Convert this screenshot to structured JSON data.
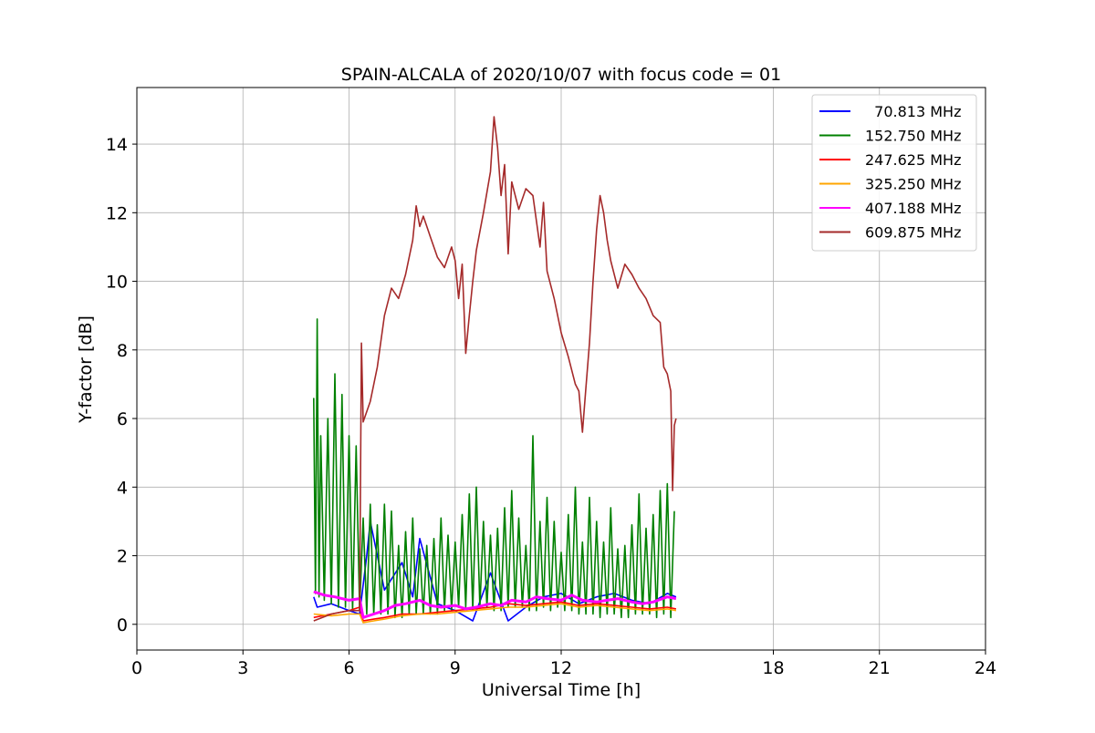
{
  "chart_data": {
    "type": "line",
    "title": "SPAIN-ALCALA of 2020/10/07 with focus code = 01",
    "xlabel": "Universal Time [h]",
    "ylabel": "Y-factor [dB]",
    "xlim": [
      0,
      24
    ],
    "ylim": [
      -0.75,
      15.65
    ],
    "xticks": [
      0,
      3,
      6,
      9,
      12,
      18,
      21,
      24
    ],
    "xtick_labels": [
      "0",
      "3",
      "6",
      "9",
      "12",
      "18",
      "21",
      "24"
    ],
    "yticks": [
      0,
      2,
      4,
      6,
      8,
      10,
      12,
      14
    ],
    "ytick_labels": [
      "0",
      "2",
      "4",
      "6",
      "8",
      "10",
      "12",
      "14"
    ],
    "grid": true,
    "legend_position": "top-right",
    "series": [
      {
        "name": "  70.813 MHz",
        "color": "#0000ff",
        "x": [
          5.0,
          5.1,
          5.5,
          6.0,
          6.3,
          6.5,
          6.6,
          7.0,
          7.5,
          7.8,
          8.0,
          8.5,
          9.0,
          9.5,
          10.0,
          10.5,
          11.0,
          11.5,
          12.0,
          12.5,
          13.0,
          13.5,
          14.0,
          14.5,
          15.0,
          15.25
        ],
        "y": [
          0.8,
          0.5,
          0.6,
          0.4,
          0.3,
          2.0,
          3.0,
          1.0,
          1.8,
          0.8,
          2.5,
          0.6,
          0.4,
          0.1,
          1.5,
          0.1,
          0.5,
          0.8,
          0.9,
          0.6,
          0.8,
          0.9,
          0.7,
          0.6,
          0.9,
          0.8
        ]
      },
      {
        "name": "152.750 MHz",
        "color": "#008000",
        "x": [
          5.0,
          5.05,
          5.1,
          5.15,
          5.2,
          5.3,
          5.4,
          5.5,
          5.6,
          5.7,
          5.8,
          5.9,
          6.0,
          6.1,
          6.2,
          6.3,
          6.4,
          6.5,
          6.6,
          6.7,
          6.8,
          6.9,
          7.0,
          7.1,
          7.2,
          7.3,
          7.4,
          7.5,
          7.6,
          7.7,
          7.8,
          7.9,
          8.0,
          8.1,
          8.2,
          8.3,
          8.4,
          8.5,
          8.6,
          8.7,
          8.8,
          8.9,
          9.0,
          9.1,
          9.2,
          9.3,
          9.4,
          9.5,
          9.6,
          9.7,
          9.8,
          9.9,
          10.0,
          10.1,
          10.2,
          10.3,
          10.4,
          10.5,
          10.6,
          10.7,
          10.8,
          10.9,
          11.0,
          11.1,
          11.2,
          11.3,
          11.4,
          11.5,
          11.6,
          11.7,
          11.8,
          11.9,
          12.0,
          12.1,
          12.2,
          12.3,
          12.4,
          12.5,
          12.6,
          12.7,
          12.8,
          12.9,
          13.0,
          13.1,
          13.2,
          13.3,
          13.4,
          13.5,
          13.6,
          13.7,
          13.8,
          13.9,
          14.0,
          14.1,
          14.2,
          14.3,
          14.4,
          14.5,
          14.6,
          14.7,
          14.8,
          14.9,
          15.0,
          15.1,
          15.2
        ],
        "y": [
          6.6,
          0.9,
          8.9,
          0.8,
          5.5,
          0.7,
          6.0,
          0.6,
          7.3,
          0.5,
          6.7,
          0.5,
          5.5,
          0.4,
          5.2,
          0.4,
          3.1,
          0.3,
          3.5,
          0.3,
          2.9,
          0.3,
          3.5,
          0.3,
          3.3,
          0.2,
          2.3,
          0.2,
          2.7,
          0.3,
          3.1,
          0.3,
          2.2,
          0.3,
          2.3,
          0.3,
          2.5,
          0.3,
          3.1,
          0.4,
          2.6,
          0.4,
          2.4,
          0.5,
          3.2,
          0.5,
          3.8,
          0.4,
          4.0,
          0.5,
          3.0,
          0.5,
          2.6,
          0.4,
          2.8,
          0.4,
          3.4,
          0.5,
          3.9,
          0.5,
          3.1,
          0.5,
          2.3,
          0.4,
          5.5,
          0.4,
          3.0,
          0.5,
          3.7,
          0.4,
          3.0,
          0.5,
          2.1,
          0.4,
          3.2,
          0.4,
          4.0,
          0.3,
          2.4,
          0.3,
          3.7,
          0.3,
          3.0,
          0.2,
          2.4,
          0.3,
          3.4,
          0.3,
          2.2,
          0.2,
          2.3,
          0.2,
          2.9,
          0.3,
          3.8,
          0.3,
          2.8,
          0.3,
          3.2,
          0.2,
          3.9,
          0.3,
          4.1,
          0.2,
          3.3
        ]
      },
      {
        "name": "247.625 MHz",
        "color": "#ff0000",
        "x": [
          5.0,
          5.5,
          6.0,
          6.3,
          6.4,
          6.7,
          7.0,
          7.5,
          8.0,
          8.5,
          9.0,
          9.5,
          10.0,
          10.5,
          11.0,
          11.5,
          12.0,
          12.5,
          13.0,
          13.5,
          14.0,
          14.5,
          15.0,
          15.25
        ],
        "y": [
          0.2,
          0.3,
          0.4,
          0.5,
          0.1,
          0.15,
          0.2,
          0.3,
          0.3,
          0.35,
          0.4,
          0.45,
          0.5,
          0.6,
          0.55,
          0.6,
          0.65,
          0.55,
          0.6,
          0.55,
          0.5,
          0.45,
          0.5,
          0.45
        ]
      },
      {
        "name": "325.250 MHz",
        "color": "#ffa500",
        "x": [
          5.0,
          5.5,
          6.0,
          6.3,
          6.4,
          6.7,
          7.0,
          7.5,
          8.0,
          8.5,
          9.0,
          9.5,
          10.0,
          10.5,
          11.0,
          11.5,
          12.0,
          12.5,
          13.0,
          13.5,
          14.0,
          14.5,
          15.0,
          15.25
        ],
        "y": [
          0.3,
          0.25,
          0.3,
          0.3,
          0.05,
          0.1,
          0.15,
          0.25,
          0.3,
          0.3,
          0.35,
          0.4,
          0.45,
          0.5,
          0.5,
          0.55,
          0.6,
          0.5,
          0.55,
          0.5,
          0.45,
          0.4,
          0.45,
          0.4
        ]
      },
      {
        "name": "407.188 MHz",
        "color": "#ff00ff",
        "x": [
          5.0,
          5.3,
          5.6,
          6.0,
          6.3,
          6.4,
          6.7,
          7.0,
          7.3,
          7.6,
          8.0,
          8.3,
          8.6,
          9.0,
          9.3,
          9.6,
          10.0,
          10.3,
          10.6,
          11.0,
          11.3,
          11.6,
          12.0,
          12.3,
          12.6,
          13.0,
          13.3,
          13.6,
          14.0,
          14.3,
          14.6,
          15.0,
          15.25
        ],
        "y": [
          0.95,
          0.85,
          0.8,
          0.7,
          0.75,
          0.2,
          0.3,
          0.4,
          0.55,
          0.6,
          0.7,
          0.55,
          0.5,
          0.55,
          0.45,
          0.5,
          0.6,
          0.55,
          0.7,
          0.65,
          0.8,
          0.75,
          0.7,
          0.85,
          0.7,
          0.65,
          0.7,
          0.75,
          0.65,
          0.6,
          0.65,
          0.8,
          0.75
        ]
      },
      {
        "name": "609.875 MHz",
        "color": "#a52a2a",
        "x": [
          5.0,
          5.5,
          6.0,
          6.3,
          6.35,
          6.4,
          6.6,
          6.8,
          7.0,
          7.2,
          7.4,
          7.6,
          7.8,
          7.9,
          8.0,
          8.1,
          8.3,
          8.5,
          8.7,
          8.9,
          9.0,
          9.1,
          9.2,
          9.3,
          9.4,
          9.5,
          9.6,
          9.8,
          10.0,
          10.1,
          10.2,
          10.3,
          10.4,
          10.5,
          10.6,
          10.8,
          11.0,
          11.2,
          11.4,
          11.5,
          11.6,
          11.8,
          12.0,
          12.2,
          12.4,
          12.5,
          12.6,
          12.7,
          12.8,
          12.9,
          13.0,
          13.1,
          13.2,
          13.3,
          13.4,
          13.6,
          13.8,
          14.0,
          14.2,
          14.4,
          14.6,
          14.8,
          14.9,
          15.0,
          15.1,
          15.15,
          15.2,
          15.25
        ],
        "y": [
          0.1,
          0.3,
          0.4,
          0.4,
          8.2,
          5.9,
          6.5,
          7.5,
          9.0,
          9.8,
          9.5,
          10.2,
          11.2,
          12.2,
          11.6,
          11.9,
          11.3,
          10.7,
          10.4,
          11.0,
          10.6,
          9.5,
          10.5,
          7.9,
          9.0,
          10.0,
          10.9,
          12.0,
          13.2,
          14.8,
          13.9,
          12.5,
          13.4,
          10.8,
          12.9,
          12.1,
          12.7,
          12.5,
          11.0,
          12.3,
          10.3,
          9.5,
          8.5,
          7.8,
          7.0,
          6.8,
          5.6,
          6.9,
          8.2,
          10.0,
          11.5,
          12.5,
          12.0,
          11.2,
          10.6,
          9.8,
          10.5,
          10.2,
          9.8,
          9.5,
          9.0,
          8.8,
          7.5,
          7.3,
          6.8,
          3.9,
          5.8,
          6.0
        ]
      }
    ]
  }
}
